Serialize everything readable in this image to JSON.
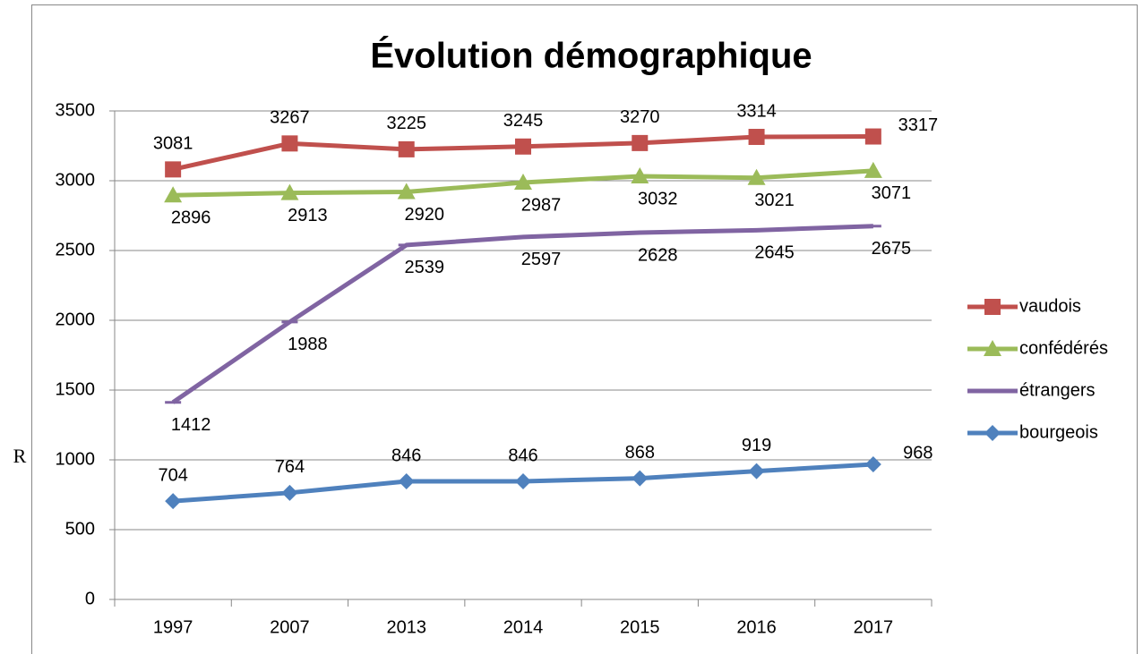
{
  "chart_data": {
    "type": "line",
    "title": "Évolution démographique",
    "side_label": "R",
    "categories": [
      "1997",
      "2007",
      "2013",
      "2014",
      "2015",
      "2016",
      "2017"
    ],
    "series": [
      {
        "name": "vaudois",
        "color": "#c0504d",
        "marker": "square",
        "label_position": "above",
        "values": [
          3081,
          3267,
          3225,
          3245,
          3270,
          3314,
          3317
        ]
      },
      {
        "name": "confédérés",
        "color": "#9bbb59",
        "marker": "triangle",
        "label_position": "below",
        "values": [
          2896,
          2913,
          2920,
          2987,
          3032,
          3021,
          3071
        ]
      },
      {
        "name": "étrangers",
        "color": "#8064a2",
        "marker": "dash",
        "label_position": "below",
        "values": [
          1412,
          1988,
          2539,
          2597,
          2628,
          2645,
          2675
        ]
      },
      {
        "name": "bourgeois",
        "color": "#4f81bd",
        "marker": "diamond",
        "label_position": "above",
        "values": [
          704,
          764,
          846,
          846,
          868,
          919,
          968
        ]
      }
    ],
    "ylim": [
      0,
      3500
    ],
    "yticks": [
      0,
      500,
      1000,
      1500,
      2000,
      2500,
      3000,
      3500
    ],
    "grid": true,
    "legend": "right"
  }
}
